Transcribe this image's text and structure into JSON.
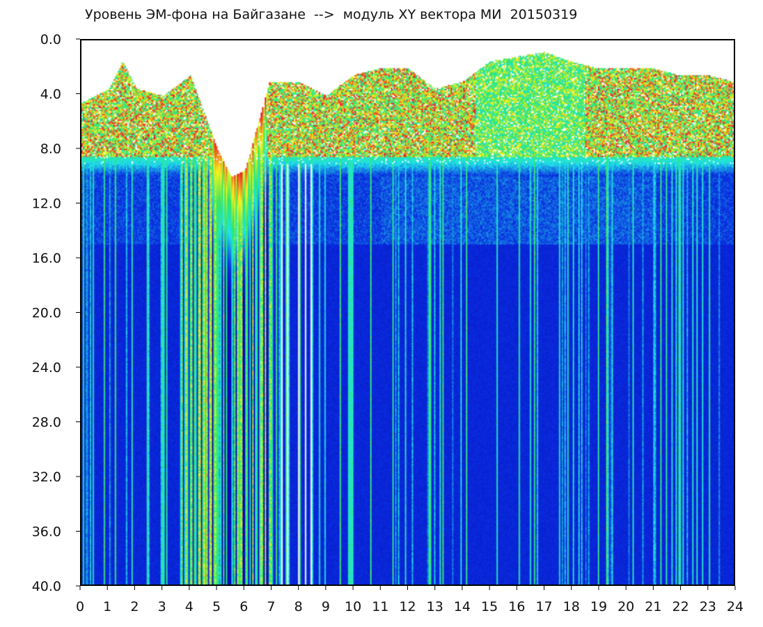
{
  "chart_title": "Уровень ЭМ-фона на Байгазане  -->  модуль XY вектора МИ  20150319",
  "chart_data": {
    "type": "heatmap",
    "title": "Уровень ЭМ-фона на Байгазане  -->  модуль XY вектора МИ  20150319",
    "xlabel": "",
    "ylabel": "",
    "x_ticks": [
      "0",
      "1",
      "2",
      "3",
      "4",
      "5",
      "6",
      "7",
      "8",
      "9",
      "10",
      "11",
      "12",
      "13",
      "14",
      "15",
      "16",
      "17",
      "18",
      "19",
      "20",
      "21",
      "22",
      "23",
      "24"
    ],
    "y_ticks": [
      "0.0",
      "4.0",
      "8.0",
      "12.0",
      "16.0",
      "20.0",
      "24.0",
      "28.0",
      "32.0",
      "36.0",
      "40.0"
    ],
    "xlim": [
      0,
      24
    ],
    "ylim": [
      0,
      40
    ],
    "y_inverted": true,
    "colorscale": [
      "#ffffff",
      "#e8142b",
      "#f7f51c",
      "#2ee66a",
      "#21e3e8",
      "#0a2fe0",
      "#0508b8"
    ],
    "approx_upper_edge_of_signal": [
      {
        "hour": 0.0,
        "value": 4.5
      },
      {
        "hour": 1.0,
        "value": 3.5
      },
      {
        "hour": 1.5,
        "value": 1.5
      },
      {
        "hour": 2.0,
        "value": 3.5
      },
      {
        "hour": 3.0,
        "value": 4.0
      },
      {
        "hour": 4.0,
        "value": 2.5
      },
      {
        "hour": 5.0,
        "value": 8.0
      },
      {
        "hour": 5.5,
        "value": 10.0
      },
      {
        "hour": 6.0,
        "value": 9.5
      },
      {
        "hour": 6.9,
        "value": 3.0
      },
      {
        "hour": 8.0,
        "value": 3.0
      },
      {
        "hour": 9.0,
        "value": 4.0
      },
      {
        "hour": 10.0,
        "value": 2.5
      },
      {
        "hour": 11.0,
        "value": 2.0
      },
      {
        "hour": 12.0,
        "value": 2.0
      },
      {
        "hour": 13.0,
        "value": 3.5
      },
      {
        "hour": 14.0,
        "value": 3.0
      },
      {
        "hour": 15.0,
        "value": 1.5
      },
      {
        "hour": 17.0,
        "value": 0.8
      },
      {
        "hour": 18.0,
        "value": 1.5
      },
      {
        "hour": 19.0,
        "value": 2.0
      },
      {
        "hour": 20.0,
        "value": 2.0
      },
      {
        "hour": 21.0,
        "value": 2.0
      },
      {
        "hour": 22.0,
        "value": 2.5
      },
      {
        "hour": 23.0,
        "value": 2.5
      },
      {
        "hour": 24.0,
        "value": 3.0
      }
    ],
    "grid": false,
    "legend": "none"
  }
}
